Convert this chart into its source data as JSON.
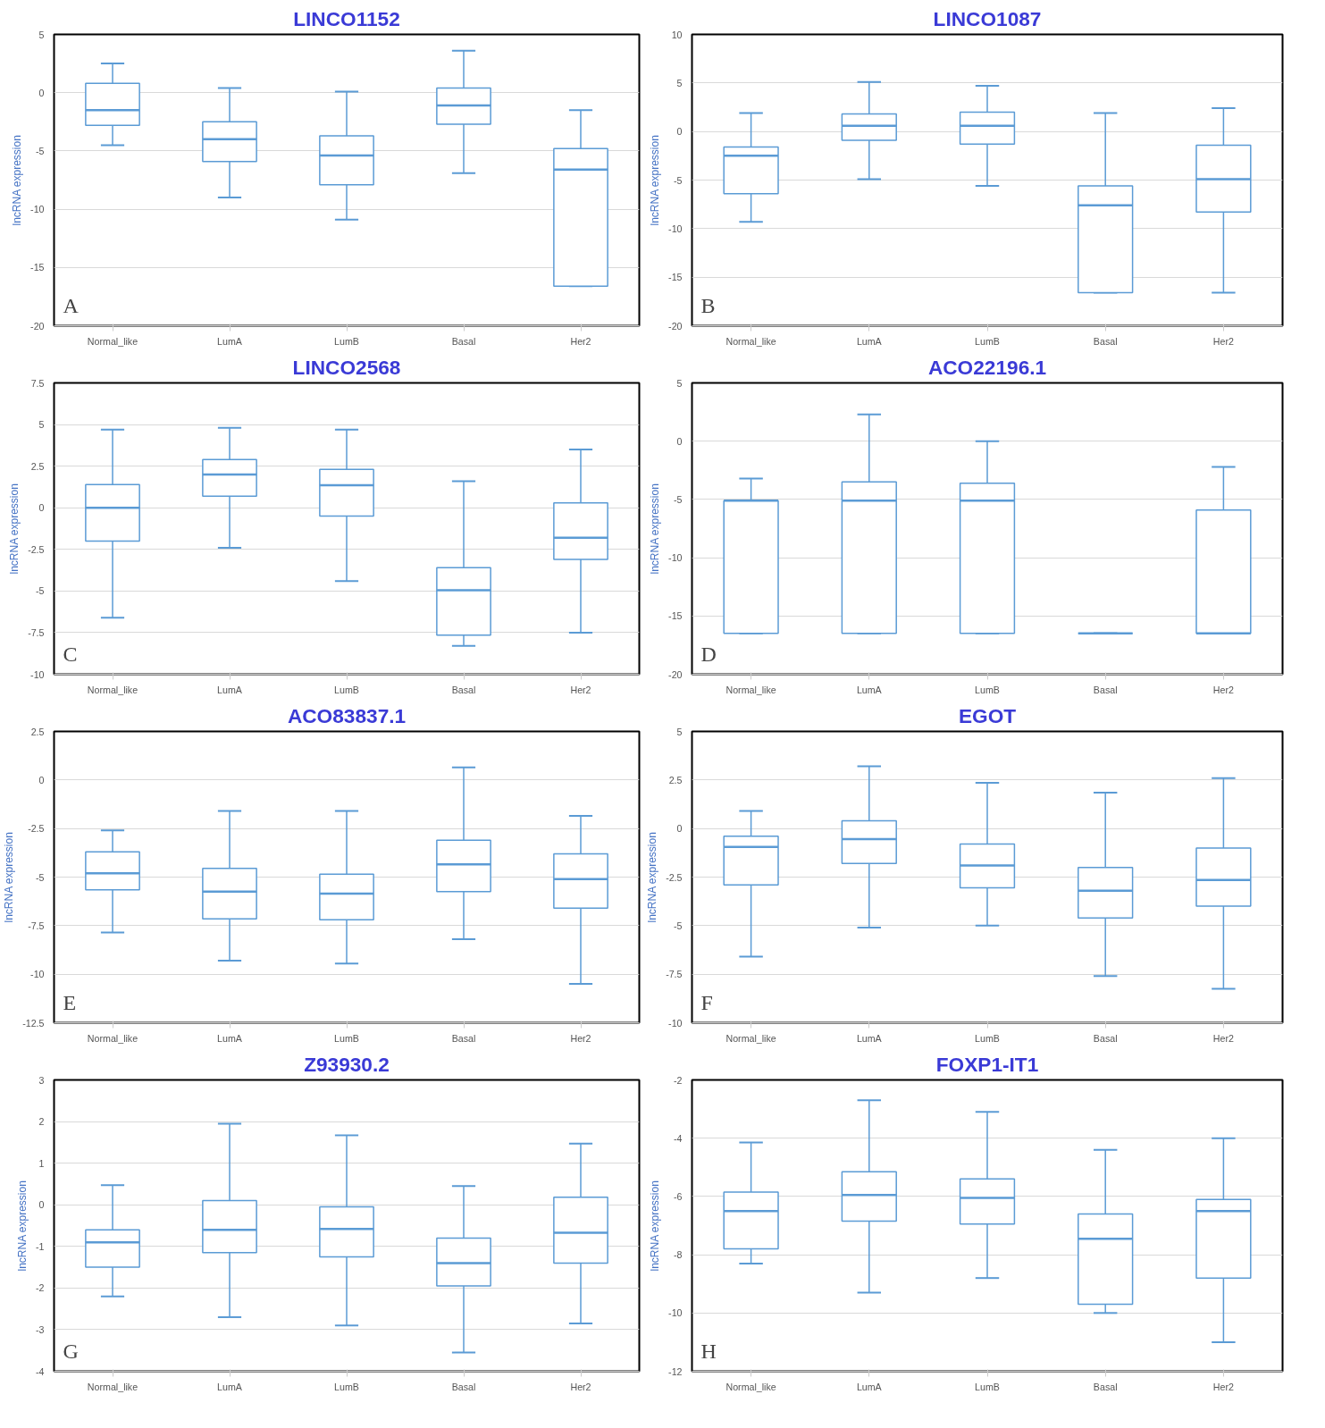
{
  "chart_data": [
    {
      "type": "box",
      "title": "LINCO1152",
      "ylabel": "lncRNA expression",
      "annotations": [
        "A"
      ],
      "categories": [
        "Normal_like",
        "LumA",
        "LumB",
        "Basal",
        "Her2"
      ],
      "ylim": [
        -20,
        5
      ],
      "yticks": [
        -20,
        -15,
        -10,
        -5,
        0,
        5
      ],
      "grid": "y",
      "series": [
        {
          "color": "#5b9bd5",
          "boxes": [
            {
              "low": -4.5,
              "q1": -2.8,
              "median": -1.5,
              "q3": 0.8,
              "high": 2.5
            },
            {
              "low": -9,
              "q1": -5.9,
              "median": -4,
              "q3": -2.5,
              "high": 0.4
            },
            {
              "low": -10.9,
              "q1": -7.9,
              "median": -5.4,
              "q3": -3.7,
              "high": 0.1
            },
            {
              "low": -6.9,
              "q1": -2.7,
              "median": -1.1,
              "q3": 0.4,
              "high": 3.6
            },
            {
              "low": -16.6,
              "q1": -16.6,
              "median": -6.6,
              "q3": -4.8,
              "high": -1.5
            }
          ]
        }
      ]
    },
    {
      "type": "box",
      "title": "LINCO1087",
      "ylabel": "lncRNA expression",
      "annotations": [
        "B"
      ],
      "categories": [
        "Normal_like",
        "LumA",
        "LumB",
        "Basal",
        "Her2"
      ],
      "ylim": [
        -20,
        10
      ],
      "yticks": [
        -20,
        -15,
        -10,
        -5,
        0,
        5,
        10
      ],
      "grid": "y",
      "series": [
        {
          "color": "#5b9bd5",
          "boxes": [
            {
              "low": -9.3,
              "q1": -6.4,
              "median": -2.5,
              "q3": -1.6,
              "high": 1.9
            },
            {
              "low": -4.9,
              "q1": -0.9,
              "median": 0.6,
              "q3": 1.8,
              "high": 5.1
            },
            {
              "low": -5.6,
              "q1": -1.3,
              "median": 0.6,
              "q3": 2,
              "high": 4.7
            },
            {
              "low": -16.6,
              "q1": -16.6,
              "median": -7.6,
              "q3": -5.6,
              "high": 1.9
            },
            {
              "low": -16.6,
              "q1": -8.3,
              "median": -4.9,
              "q3": -1.4,
              "high": 2.4
            }
          ]
        }
      ]
    },
    {
      "type": "box",
      "title": "LINCO2568",
      "ylabel": "lncRNA expression",
      "annotations": [
        "C"
      ],
      "categories": [
        "Normal_like",
        "LumA",
        "LumB",
        "Basal",
        "Her2"
      ],
      "ylim": [
        -10,
        7.5
      ],
      "yticks": [
        -10,
        -7.5,
        -5,
        -2.5,
        0,
        2.5,
        5,
        7.5
      ],
      "grid": "y",
      "series": [
        {
          "color": "#5b9bd5",
          "boxes": [
            {
              "low": -6.6,
              "q1": -2,
              "median": 0,
              "q3": 1.4,
              "high": 4.7
            },
            {
              "low": -2.4,
              "q1": 0.7,
              "median": 2,
              "q3": 2.9,
              "high": 4.8
            },
            {
              "low": -4.4,
              "q1": -0.5,
              "median": 1.35,
              "q3": 2.3,
              "high": 4.7
            },
            {
              "low": -8.3,
              "q1": -7.65,
              "median": -4.95,
              "q3": -3.6,
              "high": 1.6
            },
            {
              "low": -7.5,
              "q1": -3.1,
              "median": -1.8,
              "q3": 0.3,
              "high": 3.5
            }
          ]
        }
      ]
    },
    {
      "type": "box",
      "title": "ACO22196.1",
      "ylabel": "lncRNA expression",
      "annotations": [
        "D"
      ],
      "categories": [
        "Normal_like",
        "LumA",
        "LumB",
        "Basal",
        "Her2"
      ],
      "ylim": [
        -20,
        5
      ],
      "yticks": [
        -20,
        -15,
        -10,
        -5,
        0,
        5
      ],
      "grid": "y",
      "series": [
        {
          "color": "#5b9bd5",
          "boxes": [
            {
              "low": -16.5,
              "q1": -16.5,
              "median": -5.1,
              "q3": -5.1,
              "high": -3.2
            },
            {
              "low": -16.5,
              "q1": -16.5,
              "median": -5.1,
              "q3": -3.5,
              "high": 2.3
            },
            {
              "low": -16.5,
              "q1": -16.5,
              "median": -5.1,
              "q3": -3.6,
              "high": 0
            },
            {
              "low": -16.5,
              "q1": -16.5,
              "median": -16.5,
              "q3": -16.5,
              "high": -16.5
            },
            {
              "low": -16.5,
              "q1": -16.5,
              "median": -16.5,
              "q3": -5.9,
              "high": -2.2
            }
          ]
        }
      ]
    },
    {
      "type": "box",
      "title": "ACO83837.1",
      "ylabel": "lncRNA expression",
      "annotations": [
        "E"
      ],
      "categories": [
        "Normal_like",
        "LumA",
        "LumB",
        "Basal",
        "Her2"
      ],
      "ylim": [
        -12.5,
        2.5
      ],
      "yticks": [
        -12.5,
        -10,
        -7.5,
        -5,
        -2.5,
        0,
        2.5
      ],
      "grid": "y",
      "series": [
        {
          "color": "#5b9bd5",
          "boxes": [
            {
              "low": -7.85,
              "q1": -5.65,
              "median": -4.8,
              "q3": -3.7,
              "high": -2.6
            },
            {
              "low": -9.3,
              "q1": -7.15,
              "median": -5.75,
              "q3": -4.55,
              "high": -1.6
            },
            {
              "low": -9.45,
              "q1": -7.2,
              "median": -5.85,
              "q3": -4.85,
              "high": -1.6
            },
            {
              "low": -8.2,
              "q1": -5.75,
              "median": -4.35,
              "q3": -3.1,
              "high": 0.65
            },
            {
              "low": -10.5,
              "q1": -6.6,
              "median": -5.1,
              "q3": -3.8,
              "high": -1.85
            }
          ]
        }
      ]
    },
    {
      "type": "box",
      "title": "EGOT",
      "ylabel": "lncRNA expression",
      "annotations": [
        "F"
      ],
      "categories": [
        "Normal_like",
        "LumA",
        "LumB",
        "Basal",
        "Her2"
      ],
      "ylim": [
        -10,
        5
      ],
      "yticks": [
        -10,
        -7.5,
        -5,
        -2.5,
        0,
        2.5,
        5
      ],
      "grid": "y",
      "series": [
        {
          "color": "#5b9bd5",
          "boxes": [
            {
              "low": -6.6,
              "q1": -2.9,
              "median": -0.95,
              "q3": -0.4,
              "high": 0.9
            },
            {
              "low": -5.1,
              "q1": -1.8,
              "median": -0.55,
              "q3": 0.4,
              "high": 3.2
            },
            {
              "low": -5,
              "q1": -3.05,
              "median": -1.9,
              "q3": -0.8,
              "high": 2.35
            },
            {
              "low": -7.6,
              "q1": -4.6,
              "median": -3.2,
              "q3": -2,
              "high": 1.85
            },
            {
              "low": -8.25,
              "q1": -4,
              "median": -2.65,
              "q3": -1,
              "high": 2.6
            }
          ]
        }
      ]
    },
    {
      "type": "box",
      "title": "Z93930.2",
      "ylabel": "lncRNA expression",
      "annotations": [
        "G"
      ],
      "categories": [
        "Normal_like",
        "LumA",
        "LumB",
        "Basal",
        "Her2"
      ],
      "ylim": [
        -4,
        3
      ],
      "yticks": [
        -4,
        -3,
        -2,
        -1,
        0,
        1,
        2,
        3
      ],
      "grid": "y",
      "series": [
        {
          "color": "#5b9bd5",
          "boxes": [
            {
              "low": -2.2,
              "q1": -1.5,
              "median": -0.9,
              "q3": -0.6,
              "high": 0.47
            },
            {
              "low": -2.7,
              "q1": -1.15,
              "median": -0.6,
              "q3": 0.1,
              "high": 1.95
            },
            {
              "low": -2.9,
              "q1": -1.25,
              "median": -0.58,
              "q3": -0.05,
              "high": 1.67
            },
            {
              "low": -3.55,
              "q1": -1.95,
              "median": -1.4,
              "q3": -0.8,
              "high": 0.45
            },
            {
              "low": -2.85,
              "q1": -1.4,
              "median": -0.67,
              "q3": 0.18,
              "high": 1.47
            }
          ]
        }
      ]
    },
    {
      "type": "box",
      "title": "FOXP1-IT1",
      "ylabel": "lncRNA expression",
      "annotations": [
        "H"
      ],
      "categories": [
        "Normal_like",
        "LumA",
        "LumB",
        "Basal",
        "Her2"
      ],
      "ylim": [
        -12,
        -2
      ],
      "yticks": [
        -12,
        -10,
        -8,
        -6,
        -4,
        -2
      ],
      "grid": "y",
      "series": [
        {
          "color": "#5b9bd5",
          "boxes": [
            {
              "low": -8.3,
              "q1": -7.8,
              "median": -6.5,
              "q3": -5.85,
              "high": -4.15
            },
            {
              "low": -9.3,
              "q1": -6.85,
              "median": -5.95,
              "q3": -5.15,
              "high": -2.7
            },
            {
              "low": -8.8,
              "q1": -6.95,
              "median": -6.05,
              "q3": -5.4,
              "high": -3.1
            },
            {
              "low": -10,
              "q1": -9.7,
              "median": -7.45,
              "q3": -6.6,
              "high": -4.4
            },
            {
              "low": -11,
              "q1": -8.8,
              "median": -6.5,
              "q3": -6.1,
              "high": -4
            }
          ]
        }
      ]
    }
  ]
}
